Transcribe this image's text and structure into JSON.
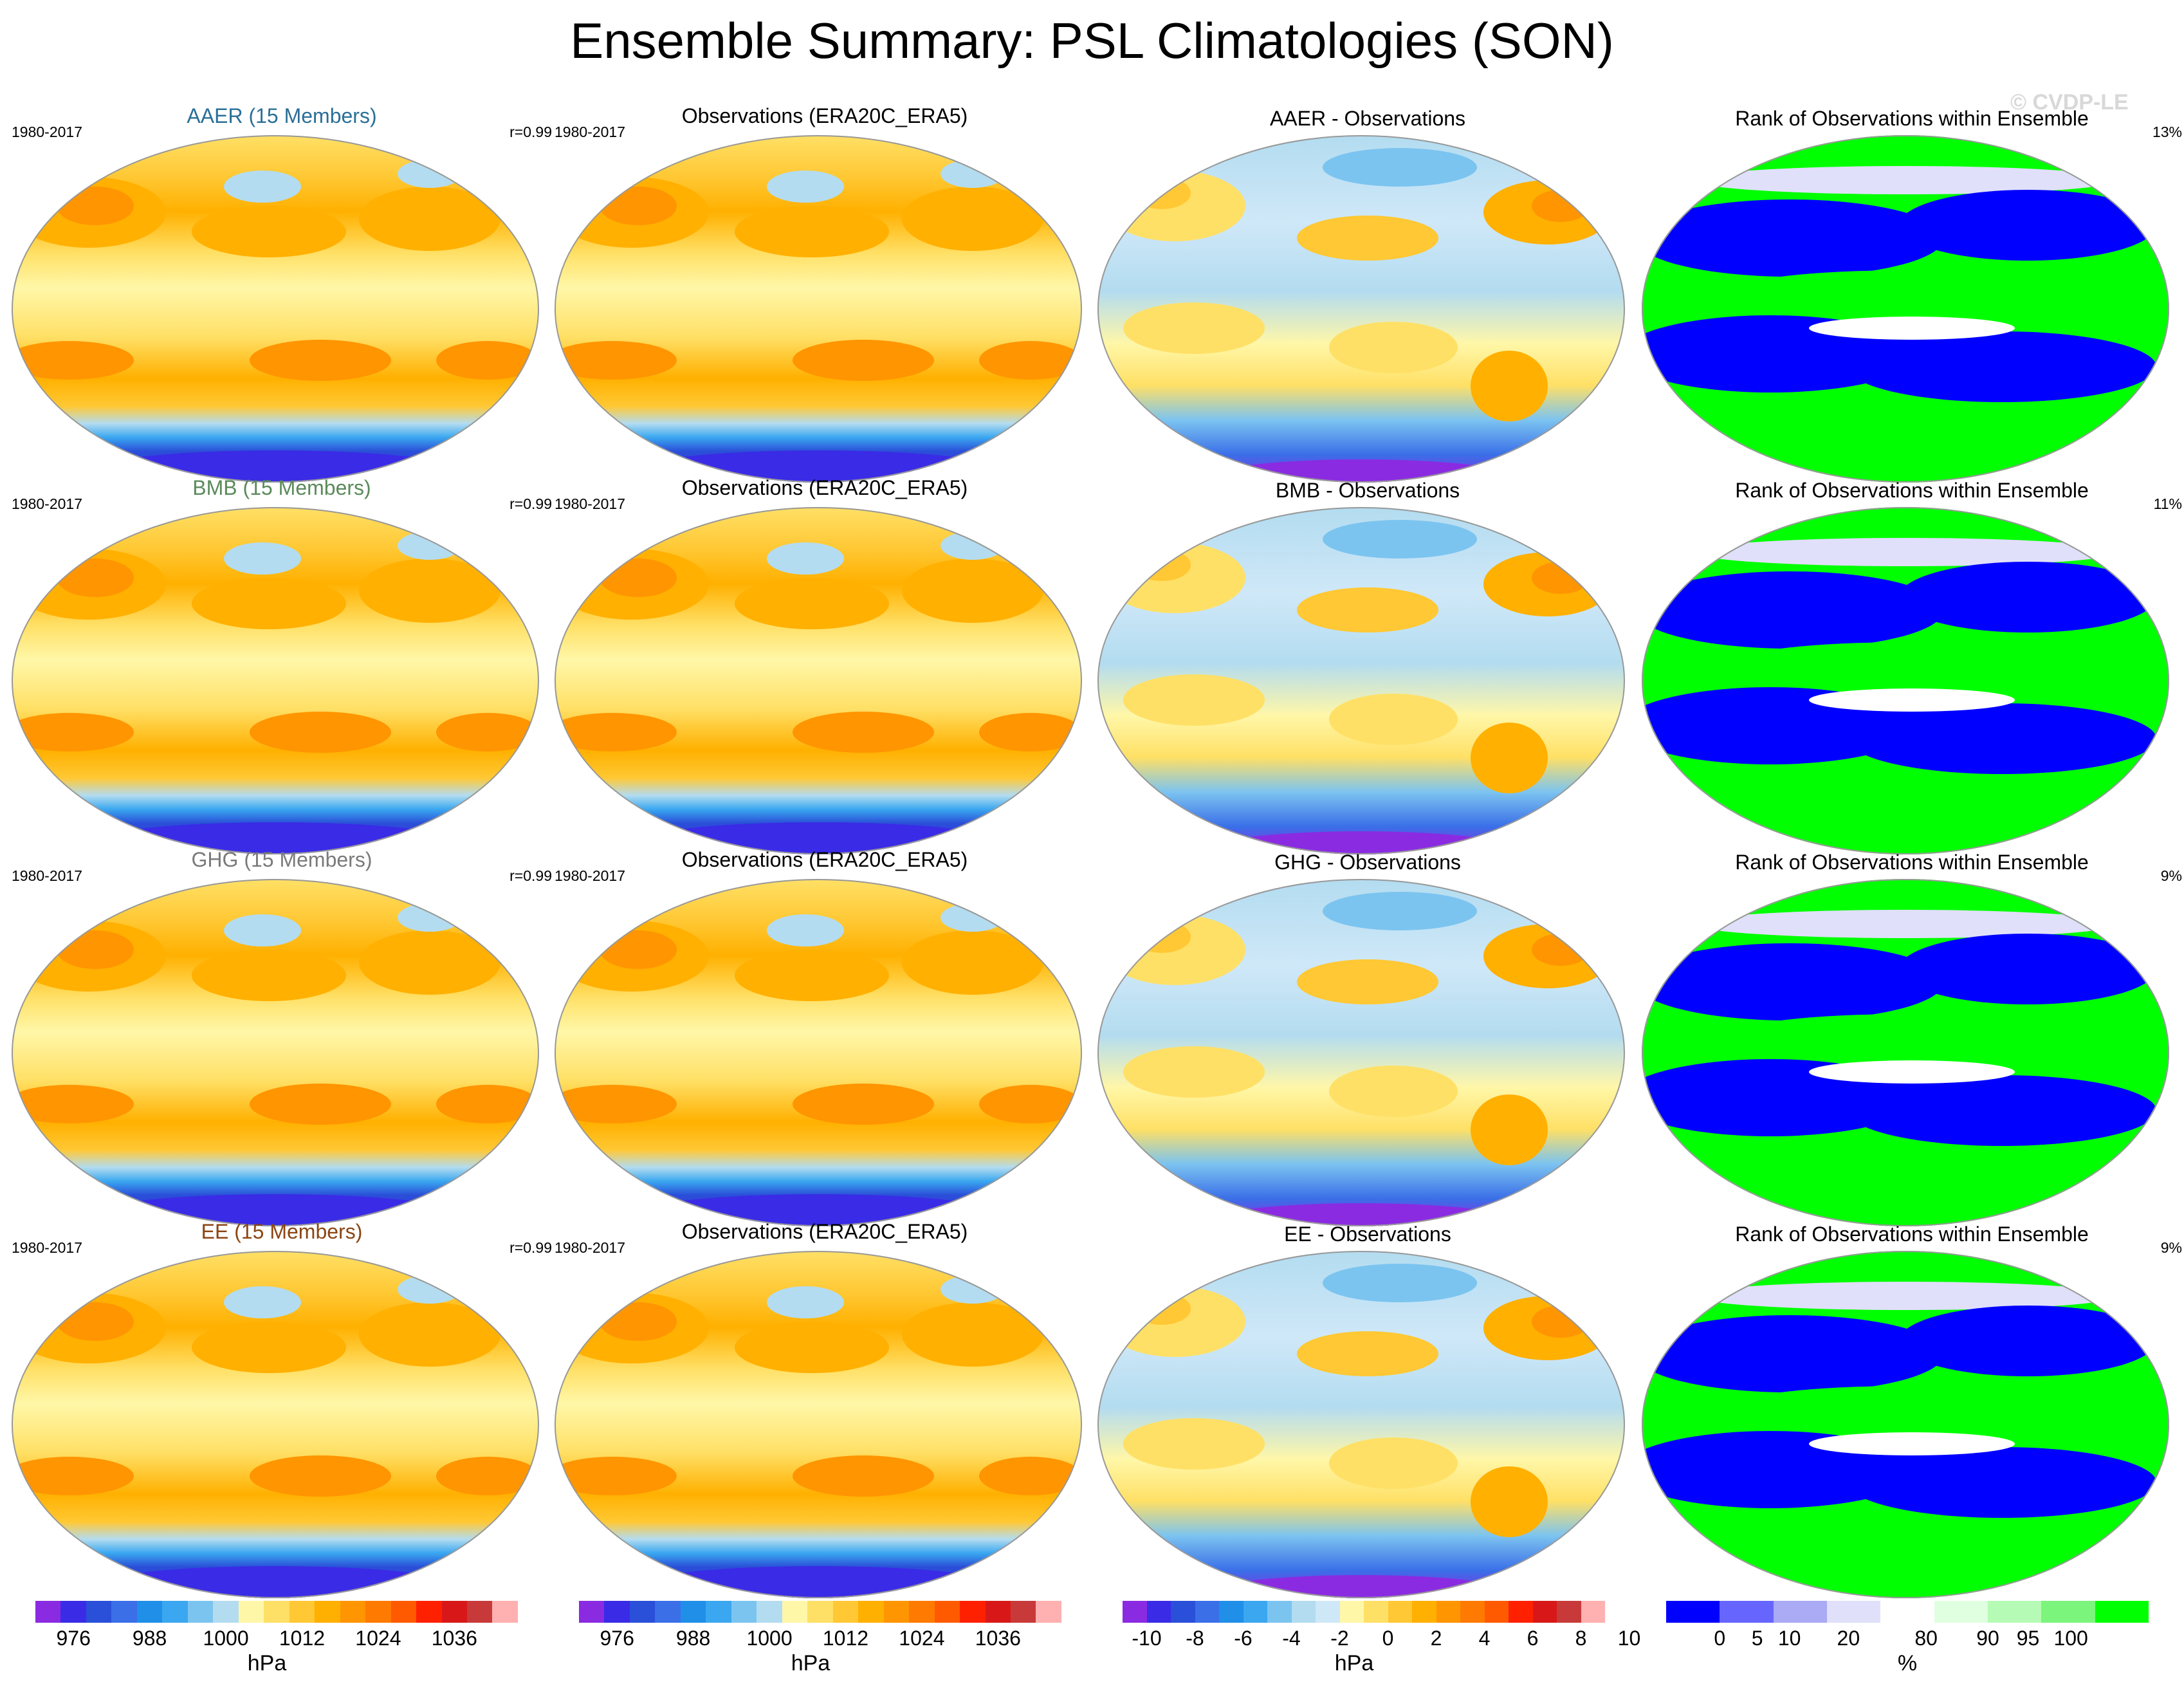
{
  "title": "Ensemble Summary: PSL Climatologies (SON)",
  "watermark": "© CVDP-LE",
  "chart_data": {
    "type": "heatmap",
    "layout": "4 rows x 4 columns of global map panels",
    "rows": [
      {
        "experiment": "AAER",
        "experiment_color": "#2a6f97",
        "ensemble_title": "AAER (15 Members)",
        "period": "1980-2017",
        "pattern_correlation": "r=0.99",
        "obs_title": "Observations (ERA20C_ERA5)",
        "obs_period": "1980-2017",
        "diff_title": "AAER - Observations",
        "rank_title": "Rank of Observations within Ensemble",
        "rank_percent": "13%"
      },
      {
        "experiment": "BMB",
        "experiment_color": "#5a8a5a",
        "ensemble_title": "BMB (15 Members)",
        "period": "1980-2017",
        "pattern_correlation": "r=0.99",
        "obs_title": "Observations (ERA20C_ERA5)",
        "obs_period": "1980-2017",
        "diff_title": "BMB - Observations",
        "rank_title": "Rank of Observations within Ensemble",
        "rank_percent": "11%"
      },
      {
        "experiment": "GHG",
        "experiment_color": "#7a7a7a",
        "ensemble_title": "GHG (15 Members)",
        "period": "1980-2017",
        "pattern_correlation": "r=0.99",
        "obs_title": "Observations (ERA20C_ERA5)",
        "obs_period": "1980-2017",
        "diff_title": "GHG - Observations",
        "rank_title": "Rank of Observations within Ensemble",
        "rank_percent": "9%"
      },
      {
        "experiment": "EE",
        "experiment_color": "#8b4513",
        "ensemble_title": "EE (15 Members)",
        "period": "1980-2017",
        "pattern_correlation": "r=0.99",
        "obs_title": "Observations (ERA20C_ERA5)",
        "obs_period": "1980-2017",
        "diff_title": "EE - Observations",
        "rank_title": "Rank of Observations within Ensemble",
        "rank_percent": "9%"
      }
    ],
    "colorbars": [
      {
        "id": "psl-ensemble",
        "ticks": [
          "976",
          "988",
          "1000",
          "1012",
          "1024",
          "1036"
        ],
        "unit": "hPa",
        "colors": [
          "#8a2be2",
          "#3a2be6",
          "#2a4fd8",
          "#3a6fe8",
          "#1f8fe8",
          "#3aa7f0",
          "#7cc4f0",
          "#b3dcf0",
          "#fff7a8",
          "#ffe066",
          "#ffc834",
          "#ffb000",
          "#ff9500",
          "#ff7a00",
          "#ff5a00",
          "#ff2000",
          "#d81818",
          "#c83a3a",
          "#ffb0b0"
        ]
      },
      {
        "id": "psl-observations",
        "ticks": [
          "976",
          "988",
          "1000",
          "1012",
          "1024",
          "1036"
        ],
        "unit": "hPa",
        "colors": [
          "#8a2be2",
          "#3a2be6",
          "#2a4fd8",
          "#3a6fe8",
          "#1f8fe8",
          "#3aa7f0",
          "#7cc4f0",
          "#b3dcf0",
          "#fff7a8",
          "#ffe066",
          "#ffc834",
          "#ffb000",
          "#ff9500",
          "#ff7a00",
          "#ff5a00",
          "#ff2000",
          "#d81818",
          "#c83a3a",
          "#ffb0b0"
        ]
      },
      {
        "id": "psl-difference",
        "ticks": [
          "-10",
          "-8",
          "-6",
          "-4",
          "-2",
          "0",
          "2",
          "4",
          "6",
          "8",
          "10"
        ],
        "unit": "hPa",
        "colors": [
          "#8a2be2",
          "#3a2be6",
          "#2a4fd8",
          "#3a6fe8",
          "#1f8fe8",
          "#3aa7f0",
          "#7cc4f0",
          "#b3dcf0",
          "#cfe8f8",
          "#fff7a8",
          "#ffe066",
          "#ffc834",
          "#ffb000",
          "#ff9500",
          "#ff7a00",
          "#ff5a00",
          "#ff2000",
          "#d81818",
          "#c83a3a",
          "#ffb0b0"
        ]
      },
      {
        "id": "rank",
        "ticks": [
          "0",
          "5",
          "10",
          "20",
          "80",
          "90",
          "95",
          "100"
        ],
        "unit": "%",
        "colors": [
          "#0000ff",
          "#6666ff",
          "#aaaaf5",
          "#e0e0fa",
          "#ffffff",
          "#e0ffe0",
          "#b5fbb5",
          "#7cf57c",
          "#00ff00"
        ]
      }
    ]
  }
}
